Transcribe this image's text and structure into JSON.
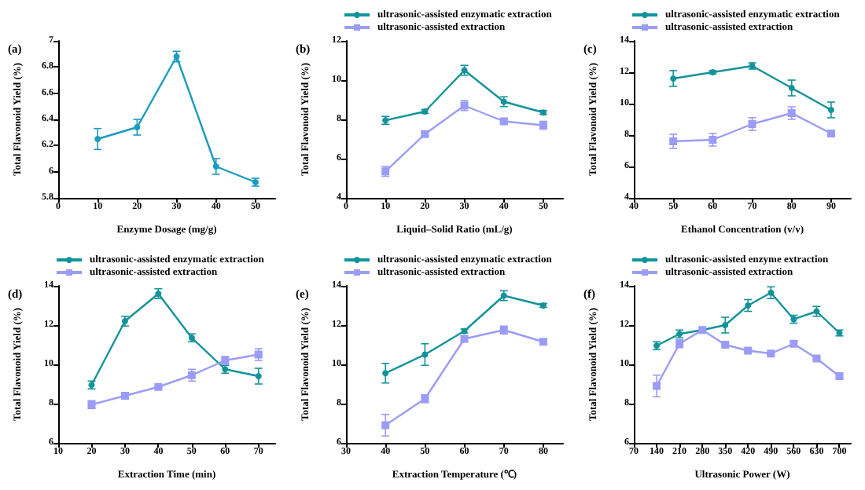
{
  "chart_data": [
    {
      "type": "line",
      "title": "(a)",
      "xlabel": "Enzyme Dosage (mg/g)",
      "ylabel": "Total Flavonoid Yield (%)",
      "x": [
        10,
        20,
        30,
        40,
        50
      ],
      "xlim": [
        0,
        55
      ],
      "xticks": [
        0,
        10,
        20,
        30,
        40,
        50
      ],
      "ylim": [
        5.8,
        7.0
      ],
      "yticks": [
        5.8,
        6.0,
        6.2,
        6.4,
        6.6,
        6.8,
        7.0
      ],
      "grid": false,
      "legend": false,
      "series": [
        {
          "color": "#1a9bbf",
          "marker": "circle",
          "values": [
            6.25,
            6.34,
            6.88,
            6.04,
            5.92
          ],
          "errors": [
            0.08,
            0.06,
            0.04,
            0.06,
            0.03
          ]
        }
      ]
    },
    {
      "type": "line",
      "title": "(b)",
      "xlabel": "Liquid–Solid Ratio (mL/g)",
      "ylabel": "Total Flavonoid Yield (%)",
      "x": [
        10,
        20,
        30,
        40,
        50
      ],
      "xlim": [
        0,
        55
      ],
      "xticks": [
        0,
        10,
        20,
        30,
        40,
        50
      ],
      "ylim": [
        4,
        12
      ],
      "yticks": [
        4,
        6,
        8,
        10,
        12
      ],
      "grid": false,
      "legend": "top",
      "series": [
        {
          "name": "ultrasonic-assisted enzymatic extraction",
          "color": "#12939a",
          "marker": "circle",
          "values": [
            7.95,
            8.4,
            10.5,
            8.9,
            8.35
          ],
          "errors": [
            0.2,
            0.1,
            0.25,
            0.25,
            0.1
          ]
        },
        {
          "name": "ultrasonic-assisted extraction",
          "color": "#9b9cf7",
          "marker": "square",
          "values": [
            5.35,
            7.25,
            8.7,
            7.9,
            7.7
          ],
          "errors": [
            0.25,
            0.1,
            0.25,
            0.15,
            0.2
          ]
        }
      ]
    },
    {
      "type": "line",
      "title": "(c)",
      "xlabel": "Ethanol Concentration (v/v)",
      "ylabel": "Total Flavonoid Yield (%)",
      "x": [
        50,
        60,
        70,
        80,
        90
      ],
      "xlim": [
        40,
        95
      ],
      "xticks": [
        40,
        50,
        60,
        70,
        80,
        90
      ],
      "ylim": [
        4,
        14
      ],
      "yticks": [
        4,
        6,
        8,
        10,
        12,
        14
      ],
      "grid": false,
      "legend": "top",
      "series": [
        {
          "name": "ultrasonic-assisted enzymatic extraction",
          "color": "#12939a",
          "marker": "circle",
          "values": [
            11.6,
            12.0,
            12.4,
            11.0,
            9.6
          ],
          "errors": [
            0.5,
            0.1,
            0.2,
            0.5,
            0.5
          ]
        },
        {
          "name": "ultrasonic-assisted extraction",
          "color": "#9b9cf7",
          "marker": "square",
          "values": [
            7.6,
            7.7,
            8.7,
            9.4,
            8.1
          ],
          "errors": [
            0.45,
            0.4,
            0.4,
            0.4,
            0.1
          ]
        }
      ]
    },
    {
      "type": "line",
      "title": "(d)",
      "xlabel": "Extraction Time (min)",
      "ylabel": "Total Flavonoid Yield (%)",
      "x": [
        20,
        30,
        40,
        50,
        60,
        70
      ],
      "xlim": [
        10,
        75
      ],
      "xticks": [
        10,
        20,
        30,
        40,
        50,
        60,
        70
      ],
      "ylim": [
        6,
        14
      ],
      "yticks": [
        6,
        8,
        10,
        12,
        14
      ],
      "grid": false,
      "legend": "top",
      "series": [
        {
          "name": "ultrasonic-assisted enzymatic extraction",
          "color": "#12939a",
          "marker": "circle",
          "values": [
            8.95,
            12.2,
            13.6,
            11.35,
            9.75,
            9.4
          ],
          "errors": [
            0.2,
            0.25,
            0.25,
            0.2,
            0.2,
            0.4
          ]
        },
        {
          "name": "ultrasonic-assisted extraction",
          "color": "#9b9cf7",
          "marker": "square",
          "values": [
            7.95,
            8.4,
            8.85,
            9.45,
            10.2,
            10.5
          ],
          "errors": [
            0.2,
            0.15,
            0.05,
            0.3,
            0.2,
            0.3
          ]
        }
      ]
    },
    {
      "type": "line",
      "title": "(e)",
      "xlabel": "Extraction Temperature (℃)",
      "ylabel": "Total Flavonoid Yield (%)",
      "x": [
        40,
        50,
        60,
        70,
        80
      ],
      "xlim": [
        30,
        85
      ],
      "xticks": [
        30,
        40,
        50,
        60,
        70,
        80
      ],
      "ylim": [
        6,
        14
      ],
      "yticks": [
        6,
        8,
        10,
        12,
        14
      ],
      "grid": false,
      "legend": "top",
      "series": [
        {
          "name": "ultrasonic-assisted enzymatic extraction",
          "color": "#12939a",
          "marker": "circle",
          "values": [
            9.55,
            10.5,
            11.7,
            13.5,
            13.0
          ],
          "errors": [
            0.5,
            0.55,
            0.1,
            0.25,
            0.1
          ]
        },
        {
          "name": "ultrasonic-assisted extraction",
          "color": "#9b9cf7",
          "marker": "square",
          "values": [
            6.9,
            8.25,
            11.3,
            11.75,
            11.15
          ],
          "errors": [
            0.55,
            0.2,
            0.15,
            0.2,
            0.15
          ]
        }
      ]
    },
    {
      "type": "line",
      "title": "(f)",
      "xlabel": "Ultrasonic Power (W)",
      "ylabel": "Total Flavonoid Yield (%)",
      "x": [
        140,
        210,
        280,
        350,
        420,
        490,
        560,
        630,
        700
      ],
      "xlim": [
        70,
        735
      ],
      "xticks": [
        70,
        140,
        210,
        280,
        350,
        420,
        490,
        560,
        630,
        700
      ],
      "ylim": [
        6,
        14
      ],
      "yticks": [
        6,
        8,
        10,
        12,
        14
      ],
      "grid": false,
      "legend": "top",
      "series": [
        {
          "name": "ultrasonic-assisted enzyme extraction",
          "color": "#12939a",
          "marker": "circle",
          "values": [
            10.95,
            11.55,
            11.75,
            12.0,
            13.0,
            13.65,
            12.3,
            12.7,
            11.6
          ],
          "errors": [
            0.2,
            0.2,
            null,
            0.4,
            0.3,
            0.3,
            0.2,
            0.25,
            0.15
          ]
        },
        {
          "name": "ultrasonic-assisted extraction",
          "color": "#9b9cf7",
          "marker": "square",
          "values": [
            8.9,
            11.05,
            11.75,
            11.0,
            10.7,
            10.55,
            11.05,
            10.3,
            9.4
          ],
          "errors": [
            0.55,
            0.2,
            null,
            0.1,
            0.05,
            0.05,
            0.15,
            0.05,
            0.1
          ]
        }
      ]
    }
  ]
}
